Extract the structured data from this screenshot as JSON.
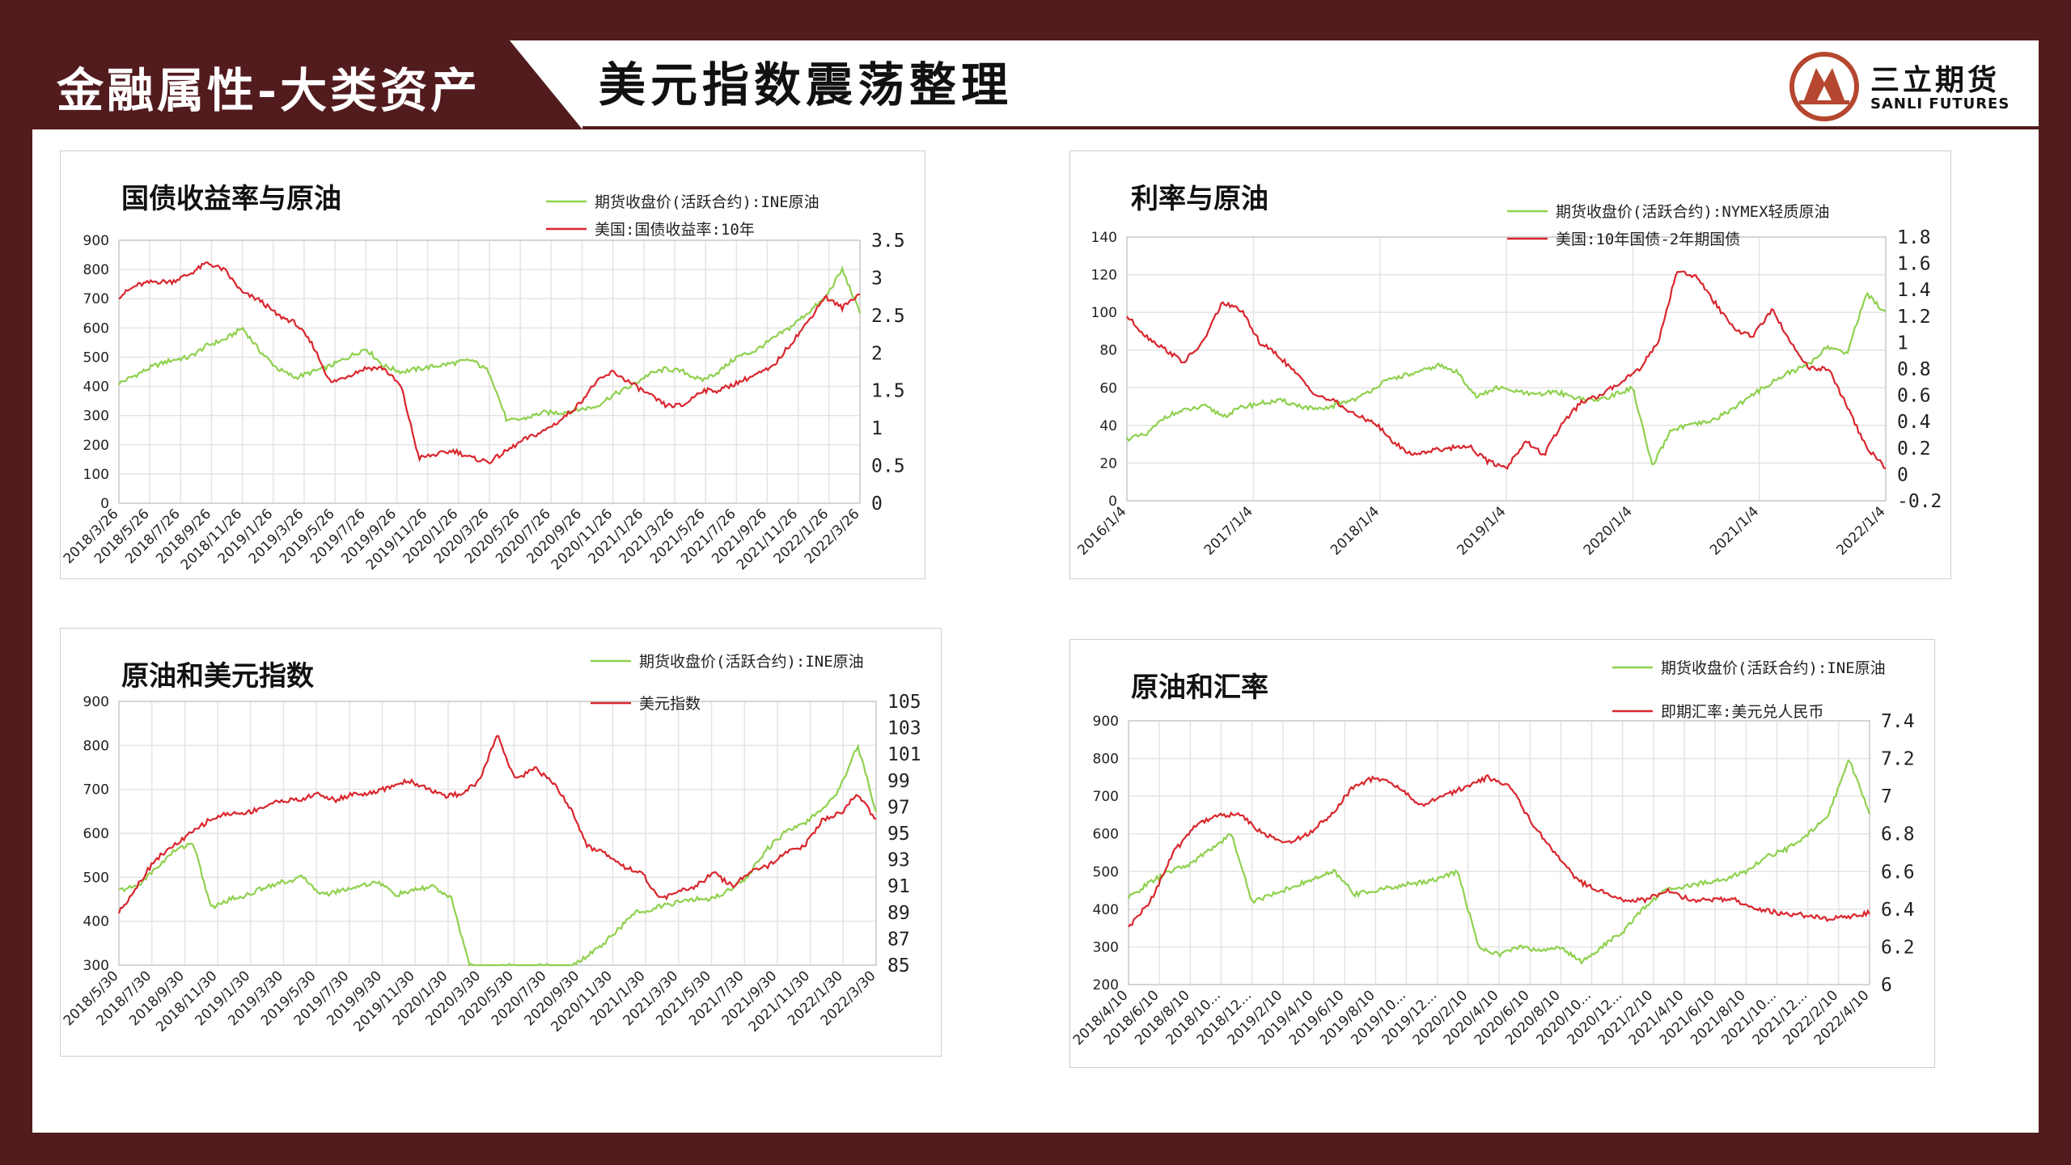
{
  "header": {
    "section": "金融属性-大类资产",
    "title": "美元指数震荡整理",
    "logo_name": "三立期货",
    "logo_sub": "SANLI FUTURES",
    "colors": {
      "frame": "#521b1e",
      "logo": "#b5462f",
      "green": "#8fd14f",
      "red": "#d9262d"
    }
  },
  "chart_data": [
    {
      "id": "c1",
      "type": "line",
      "title": "国债收益率与原油",
      "x_ticks": [
        "2018/3/26",
        "2018/5/26",
        "2018/7/26",
        "2018/9/26",
        "2018/11/26",
        "2019/1/26",
        "2019/3/26",
        "2019/5/26",
        "2019/7/26",
        "2019/9/26",
        "2019/11/26",
        "2020/1/26",
        "2020/3/26",
        "2020/5/26",
        "2020/7/26",
        "2020/9/26",
        "2020/11/26",
        "2021/1/26",
        "2021/3/26",
        "2021/5/26",
        "2021/7/26",
        "2021/9/26",
        "2021/11/26",
        "2022/1/26",
        "2022/3/26"
      ],
      "y_left": {
        "min": 0,
        "max": 900,
        "ticks": [
          "0",
          "100",
          "200",
          "300",
          "400",
          "500",
          "600",
          "700",
          "800",
          "900"
        ]
      },
      "y_right": {
        "min": 0,
        "max": 3.5,
        "ticks": [
          "0",
          "0.5",
          "1",
          "1.5",
          "2",
          "2.5",
          "3",
          "3.5"
        ]
      },
      "series": [
        {
          "name": "期货收盘价(活跃合约):INE原油",
          "axis": "left",
          "color": "#8fd14f",
          "values": [
            410,
            440,
            470,
            490,
            500,
            540,
            560,
            600,
            520,
            460,
            430,
            450,
            470,
            500,
            530,
            470,
            450,
            460,
            470,
            480,
            490,
            450,
            280,
            290,
            310,
            310,
            320,
            330,
            370,
            400,
            440,
            460,
            450,
            420,
            450,
            500,
            520,
            560,
            600,
            650,
            700,
            800,
            650
          ]
        },
        {
          "name": "美国:国债收益率:10年",
          "axis": "right",
          "color": "#d9262d",
          "values": [
            2.75,
            2.9,
            2.95,
            2.95,
            3.05,
            3.2,
            3.1,
            2.8,
            2.7,
            2.5,
            2.4,
            2.1,
            1.6,
            1.7,
            1.8,
            1.8,
            1.55,
            0.6,
            0.65,
            0.7,
            0.6,
            0.55,
            0.7,
            0.85,
            0.95,
            1.1,
            1.3,
            1.6,
            1.75,
            1.6,
            1.45,
            1.3,
            1.3,
            1.5,
            1.5,
            1.6,
            1.7,
            1.8,
            2.1,
            2.4,
            2.75,
            2.6,
            2.8
          ]
        }
      ]
    },
    {
      "id": "c2",
      "type": "line",
      "title": "利率与原油",
      "x_ticks": [
        "2016/1/4",
        "2017/1/4",
        "2018/1/4",
        "2019/1/4",
        "2020/1/4",
        "2021/1/4",
        "2022/1/4"
      ],
      "y_left": {
        "min": 0,
        "max": 140,
        "ticks": [
          "0",
          "20",
          "40",
          "60",
          "80",
          "100",
          "120",
          "140"
        ]
      },
      "y_right": {
        "min": -0.2,
        "max": 1.8,
        "ticks": [
          "-0.2",
          "0",
          "0.2",
          "0.4",
          "0.6",
          "0.8",
          "1",
          "1.2",
          "1.4",
          "1.6",
          "1.8"
        ]
      },
      "series": [
        {
          "name": "期货收盘价(活跃合约):NYMEX轻质原油",
          "axis": "left",
          "color": "#8fd14f",
          "values": [
            33,
            35,
            45,
            48,
            50,
            45,
            50,
            52,
            53,
            50,
            48,
            52,
            55,
            62,
            66,
            68,
            72,
            68,
            55,
            60,
            58,
            56,
            58,
            55,
            53,
            56,
            60,
            18,
            38,
            40,
            42,
            48,
            55,
            62,
            68,
            72,
            82,
            78,
            110,
            100
          ]
        },
        {
          "name": "美国:10年国债-2年期国债",
          "axis": "right",
          "color": "#d9262d",
          "values": [
            1.2,
            1.05,
            0.95,
            0.85,
            1.0,
            1.3,
            1.25,
            1.0,
            0.9,
            0.75,
            0.6,
            0.55,
            0.45,
            0.4,
            0.25,
            0.15,
            0.18,
            0.2,
            0.22,
            0.1,
            0.05,
            0.25,
            0.15,
            0.4,
            0.55,
            0.6,
            0.7,
            0.8,
            1.0,
            1.55,
            1.5,
            1.3,
            1.1,
            1.05,
            1.25,
            1.0,
            0.8,
            0.8,
            0.5,
            0.2,
            0.05
          ]
        }
      ]
    },
    {
      "id": "c3",
      "type": "line",
      "title": "原油和美元指数",
      "x_ticks": [
        "2018/5/30",
        "2018/7/30",
        "2018/9/30",
        "2018/11/30",
        "2019/1/30",
        "2019/3/30",
        "2019/5/30",
        "2019/7/30",
        "2019/9/30",
        "2019/11/30",
        "2020/1/30",
        "2020/3/30",
        "2020/5/30",
        "2020/7/30",
        "2020/9/30",
        "2020/11/30",
        "2021/1/30",
        "2021/3/30",
        "2021/5/30",
        "2021/7/30",
        "2021/9/30",
        "2021/11/30",
        "2022/1/30",
        "2022/3/30"
      ],
      "y_left": {
        "min": 300,
        "max": 900,
        "ticks": [
          "300",
          "400",
          "500",
          "600",
          "700",
          "800",
          "900"
        ]
      },
      "y_right": {
        "min": 85,
        "max": 105,
        "ticks": [
          "85",
          "87",
          "89",
          "91",
          "93",
          "95",
          "97",
          "99",
          "101",
          "103",
          "105"
        ]
      },
      "series": [
        {
          "name": "期货收盘价(活跃合约):INE原油",
          "axis": "left",
          "color": "#8fd14f",
          "values": [
            470,
            480,
            520,
            560,
            580,
            430,
            450,
            460,
            480,
            490,
            500,
            460,
            470,
            480,
            490,
            460,
            470,
            480,
            450,
            300,
            290,
            300,
            290,
            300,
            290,
            310,
            340,
            380,
            420,
            430,
            440,
            450,
            450,
            470,
            500,
            560,
            600,
            620,
            650,
            700,
            800,
            650
          ]
        },
        {
          "name": "美元指数",
          "axis": "right",
          "color": "#d9262d",
          "values": [
            89,
            91,
            93,
            94,
            95,
            96,
            96.5,
            96.5,
            97,
            97.5,
            97.5,
            98,
            97.5,
            98,
            98,
            98.5,
            99,
            98.5,
            97.8,
            98,
            99,
            102.5,
            99,
            100,
            99,
            97,
            94,
            93.5,
            92.5,
            92,
            90,
            90.5,
            91,
            92,
            91,
            92,
            92.5,
            93.5,
            94,
            96,
            96.5,
            98,
            96
          ]
        }
      ]
    },
    {
      "id": "c4",
      "type": "line",
      "title": "原油和汇率",
      "x_ticks": [
        "2018/4/10",
        "2018/6/10",
        "2018/8/10",
        "2018/10...",
        "2018/12...",
        "2019/2/10",
        "2019/4/10",
        "2019/6/10",
        "2019/8/10",
        "2019/10...",
        "2019/12...",
        "2020/2/10",
        "2020/4/10",
        "2020/6/10",
        "2020/8/10",
        "2020/10...",
        "2020/12...",
        "2021/2/10",
        "2021/4/10",
        "2021/6/10",
        "2021/8/10",
        "2021/10...",
        "2021/12...",
        "2022/2/10",
        "2022/4/10"
      ],
      "y_left": {
        "min": 200,
        "max": 900,
        "ticks": [
          "200",
          "300",
          "400",
          "500",
          "600",
          "700",
          "800",
          "900"
        ]
      },
      "y_right": {
        "min": 6,
        "max": 7.4,
        "ticks": [
          "6",
          "6.2",
          "6.4",
          "6.6",
          "6.8",
          "7",
          "7.2",
          "7.4"
        ]
      },
      "series": [
        {
          "name": "期货收盘价(活跃合约):INE原油",
          "axis": "left",
          "color": "#8fd14f",
          "values": [
            430,
            470,
            500,
            520,
            560,
            600,
            420,
            440,
            460,
            480,
            500,
            440,
            450,
            460,
            470,
            480,
            500,
            300,
            280,
            300,
            290,
            300,
            260,
            300,
            340,
            400,
            450,
            460,
            470,
            480,
            500,
            540,
            560,
            600,
            650,
            800,
            650
          ]
        },
        {
          "name": "即期汇率:美元兑人民币",
          "axis": "right",
          "color": "#d9262d",
          "values": [
            6.3,
            6.45,
            6.7,
            6.85,
            6.9,
            6.9,
            6.8,
            6.75,
            6.8,
            6.9,
            7.05,
            7.1,
            7.05,
            6.95,
            7.0,
            7.05,
            7.1,
            7.05,
            6.85,
            6.7,
            6.55,
            6.5,
            6.45,
            6.45,
            6.5,
            6.45,
            6.45,
            6.45,
            6.4,
            6.38,
            6.37,
            6.35,
            6.36,
            6.38
          ]
        }
      ]
    }
  ]
}
